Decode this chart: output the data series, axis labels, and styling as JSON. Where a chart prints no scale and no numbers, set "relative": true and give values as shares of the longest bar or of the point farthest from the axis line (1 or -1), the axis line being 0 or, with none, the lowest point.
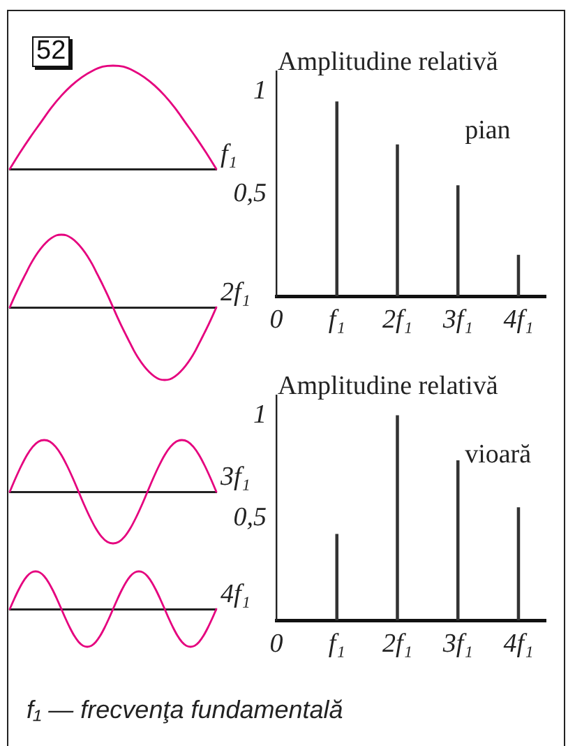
{
  "chart_data": [
    {
      "type": "line",
      "relative": true,
      "annotations": [
        "52"
      ],
      "categories": [
        null,
        null,
        null,
        null,
        null,
        null,
        null,
        null,
        null,
        null,
        null,
        null,
        null,
        null,
        null,
        null,
        null,
        null,
        null,
        null,
        null
      ],
      "series": [
        {
          "name": "f₁",
          "color": "#e5007e",
          "values": [
            0,
            0.16,
            0.31,
            0.45,
            0.59,
            0.71,
            0.81,
            0.89,
            0.95,
            0.99,
            1,
            0.99,
            0.95,
            0.89,
            0.81,
            0.71,
            0.59,
            0.45,
            0.31,
            0.16,
            0
          ]
        }
      ]
    },
    {
      "type": "line",
      "relative": true,
      "categories": [
        null,
        null,
        null,
        null,
        null,
        null,
        null,
        null,
        null,
        null,
        null,
        null,
        null,
        null,
        null,
        null,
        null,
        null,
        null,
        null,
        null,
        null,
        null,
        null,
        null,
        null,
        null,
        null,
        null,
        null,
        null,
        null,
        null,
        null,
        null,
        null,
        null,
        null,
        null,
        null,
        null
      ],
      "series": [
        {
          "name": "2f₁",
          "color": "#e5007e",
          "values": [
            0,
            0.16,
            0.31,
            0.45,
            0.59,
            0.71,
            0.81,
            0.89,
            0.95,
            0.99,
            1,
            0.99,
            0.95,
            0.89,
            0.81,
            0.71,
            0.59,
            0.45,
            0.31,
            0.16,
            0,
            -0.16,
            -0.31,
            -0.45,
            -0.59,
            -0.71,
            -0.81,
            -0.89,
            -0.95,
            -0.99,
            -1,
            -0.99,
            -0.95,
            -0.89,
            -0.81,
            -0.71,
            -0.59,
            -0.45,
            -0.31,
            -0.16,
            0
          ]
        }
      ]
    },
    {
      "type": "line",
      "relative": true,
      "categories": [
        null,
        null,
        null,
        null,
        null,
        null,
        null,
        null,
        null,
        null,
        null,
        null,
        null,
        null,
        null,
        null,
        null,
        null,
        null,
        null,
        null,
        null,
        null,
        null,
        null,
        null,
        null,
        null,
        null,
        null,
        null,
        null,
        null,
        null,
        null,
        null,
        null
      ],
      "series": [
        {
          "name": "3f₁",
          "color": "#e5007e",
          "values": [
            0,
            0.26,
            0.5,
            0.71,
            0.87,
            0.97,
            1,
            0.97,
            0.87,
            0.71,
            0.5,
            0.26,
            0,
            -0.26,
            -0.5,
            -0.71,
            -0.87,
            -0.97,
            -1,
            -0.97,
            -0.87,
            -0.71,
            -0.5,
            -0.26,
            0,
            0.26,
            0.5,
            0.71,
            0.87,
            0.97,
            1,
            0.97,
            0.87,
            0.71,
            0.5,
            0.26,
            0
          ]
        }
      ]
    },
    {
      "type": "line",
      "relative": true,
      "categories": [
        null,
        null,
        null,
        null,
        null,
        null,
        null,
        null,
        null,
        null,
        null,
        null,
        null,
        null,
        null,
        null,
        null,
        null,
        null,
        null,
        null,
        null,
        null,
        null,
        null,
        null,
        null,
        null,
        null,
        null,
        null,
        null,
        null,
        null,
        null,
        null,
        null,
        null,
        null,
        null,
        null,
        null,
        null,
        null,
        null,
        null,
        null,
        null,
        null
      ],
      "series": [
        {
          "name": "4f₁",
          "color": "#e5007e",
          "values": [
            0,
            0.26,
            0.5,
            0.71,
            0.87,
            0.97,
            1,
            0.97,
            0.87,
            0.71,
            0.5,
            0.26,
            0,
            -0.26,
            -0.5,
            -0.71,
            -0.87,
            -0.97,
            -1,
            -0.97,
            -0.87,
            -0.71,
            -0.5,
            -0.26,
            0,
            0.26,
            0.5,
            0.71,
            0.87,
            0.97,
            1,
            0.97,
            0.87,
            0.71,
            0.5,
            0.26,
            0,
            -0.26,
            -0.5,
            -0.71,
            -0.87,
            -0.97,
            -1,
            -0.97,
            -0.87,
            -0.71,
            -0.5,
            -0.26,
            0
          ]
        }
      ]
    },
    {
      "type": "bar",
      "ylabel": "Amplitudine relativă",
      "x": [
        1,
        2,
        3,
        4
      ],
      "series": [
        {
          "name": "pian",
          "color": "#333333",
          "values": [
            0.95,
            0.74,
            0.54,
            0.2
          ]
        }
      ],
      "xlim": [
        0,
        4.45
      ],
      "xticks": [
        {
          "value": 0,
          "label": "0"
        },
        {
          "value": 1,
          "label": "f₁"
        },
        {
          "value": 2,
          "label": "2f₁"
        },
        {
          "value": 3,
          "label": "3f₁"
        },
        {
          "value": 4,
          "label": "4f₁"
        }
      ],
      "ylim": [
        0,
        1.1
      ],
      "yticks": [
        {
          "value": 0.5,
          "label": "0,5"
        },
        1
      ]
    },
    {
      "type": "bar",
      "ylabel": "Amplitudine relativă",
      "x": [
        1,
        2,
        3,
        4
      ],
      "series": [
        {
          "name": "vioară",
          "color": "#333333",
          "values": [
            0.42,
            1,
            0.78,
            0.55
          ]
        }
      ],
      "xlim": [
        0,
        4.45
      ],
      "xticks": [
        {
          "value": 0,
          "label": "0"
        },
        {
          "value": 1,
          "label": "f₁"
        },
        {
          "value": 2,
          "label": "2f₁"
        },
        {
          "value": 3,
          "label": "3f₁"
        },
        {
          "value": 4,
          "label": "4f₁"
        }
      ],
      "ylim": [
        0,
        1.1
      ],
      "yticks": [
        {
          "value": 0.5,
          "label": "0,5"
        },
        1
      ],
      "annotations": [
        "f₁ — frecvenţa fundamentală"
      ]
    }
  ]
}
